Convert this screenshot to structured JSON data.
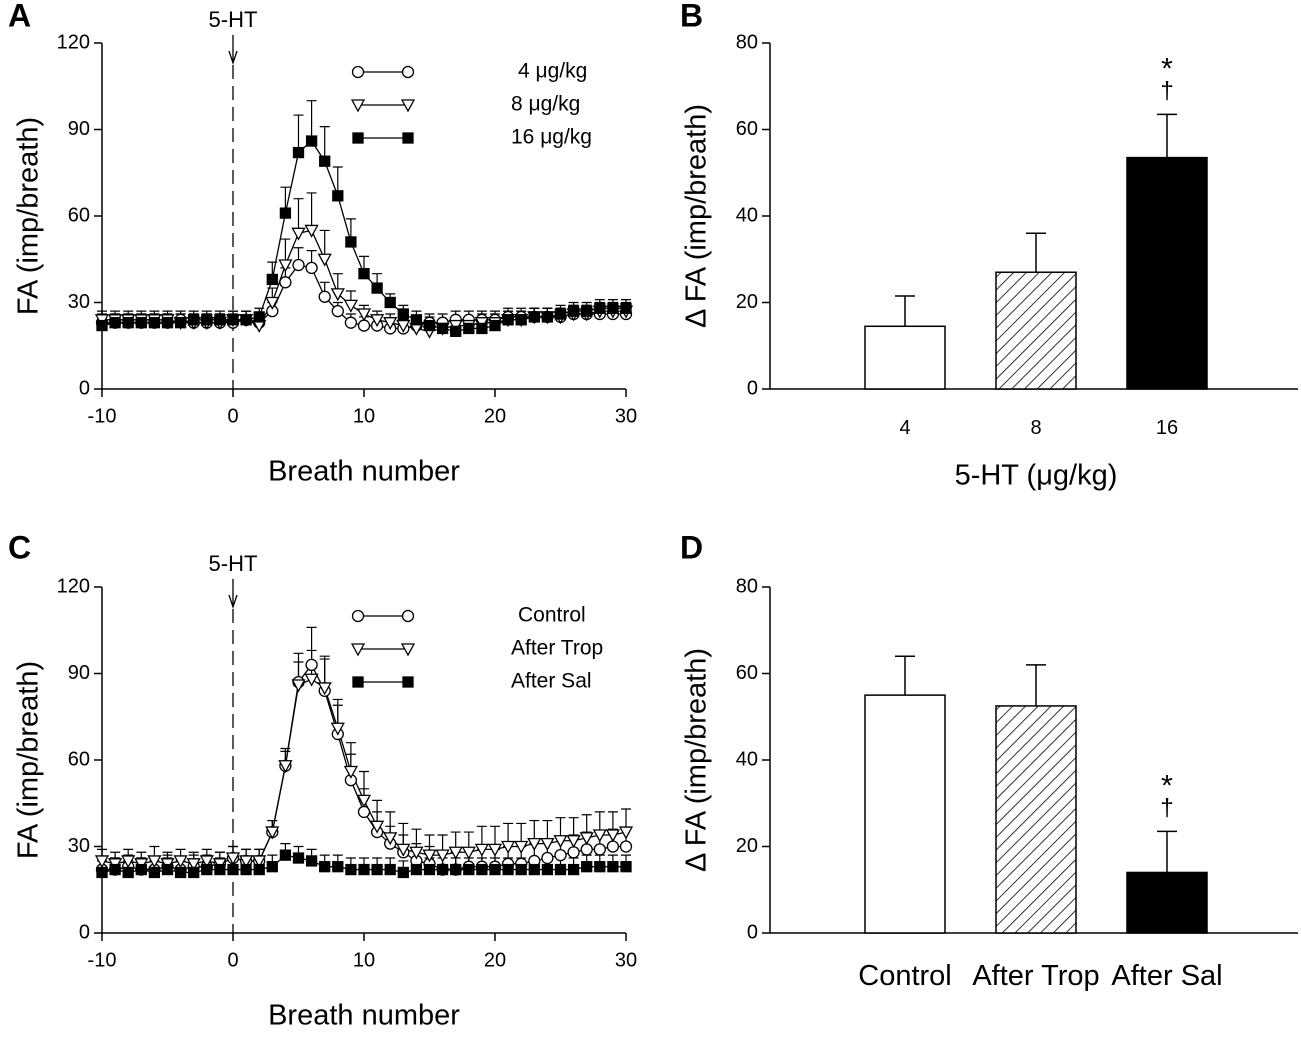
{
  "chart_data": [
    {
      "type": "line",
      "panel_label": "A",
      "xlabel": "Breath number",
      "ylabel": "FA (imp/breath)",
      "xlim": [
        -10,
        30
      ],
      "xticks": [
        -10,
        0,
        10,
        20,
        30
      ],
      "ylim": [
        0,
        120
      ],
      "yticks": [
        0,
        30,
        60,
        90,
        120
      ],
      "annotations": [
        {
          "text": "5-HT",
          "x": 0
        }
      ],
      "legend": "upper right",
      "x": [
        -10,
        -9,
        -8,
        -7,
        -6,
        -5,
        -4,
        -3,
        -2,
        -1,
        0,
        1,
        2,
        3,
        4,
        5,
        6,
        7,
        8,
        9,
        10,
        11,
        12,
        13,
        14,
        15,
        16,
        17,
        18,
        19,
        20,
        21,
        22,
        23,
        24,
        25,
        26,
        27,
        28,
        29,
        30
      ],
      "series": [
        {
          "name": "4 μg/kg",
          "marker": "circle-open",
          "color": "#000000",
          "values": [
            23,
            23,
            23,
            23,
            23,
            23,
            24,
            23,
            23,
            23,
            23,
            24,
            23,
            27,
            37,
            43,
            42,
            32,
            27,
            23,
            22,
            22,
            21,
            21,
            22,
            23,
            23,
            24,
            24,
            24,
            24,
            25,
            25,
            25,
            25,
            25,
            26,
            26,
            26,
            26,
            26
          ],
          "errors": [
            3,
            3,
            3,
            3,
            3,
            3,
            3,
            3,
            3,
            3,
            3,
            3,
            3,
            3,
            5,
            6,
            6,
            5,
            3,
            3,
            3,
            3,
            3,
            3,
            3,
            3,
            3,
            3,
            3,
            3,
            3,
            3,
            3,
            3,
            3,
            3,
            3,
            3,
            3,
            3,
            3
          ]
        },
        {
          "name": "8 μg/kg",
          "marker": "triangle-open",
          "color": "#000000",
          "values": [
            24,
            24,
            24,
            24,
            24,
            24,
            23,
            23,
            23,
            23,
            24,
            24,
            22,
            30,
            43,
            54,
            55,
            45,
            33,
            29,
            26,
            24,
            23,
            22,
            21,
            20,
            21,
            22,
            22,
            23,
            23,
            24,
            24,
            25,
            25,
            25,
            26,
            26,
            27,
            27,
            27
          ],
          "errors": [
            3,
            3,
            3,
            3,
            3,
            3,
            3,
            3,
            3,
            3,
            3,
            3,
            3,
            5,
            9,
            12,
            13,
            10,
            7,
            5,
            3,
            3,
            3,
            3,
            3,
            3,
            3,
            3,
            3,
            3,
            3,
            3,
            3,
            3,
            3,
            3,
            3,
            3,
            3,
            3,
            3
          ]
        },
        {
          "name": "16 μg/kg",
          "marker": "square-filled",
          "color": "#000000",
          "values": [
            22,
            23,
            23,
            23,
            23,
            23,
            23,
            24,
            24,
            24,
            24,
            24,
            25,
            38,
            61,
            82,
            86,
            79,
            67,
            51,
            40,
            35,
            30,
            26,
            24,
            22,
            21,
            20,
            21,
            21,
            22,
            24,
            24,
            25,
            25,
            26,
            27,
            27,
            28,
            28,
            28
          ],
          "errors": [
            3,
            3,
            3,
            3,
            3,
            3,
            3,
            3,
            3,
            3,
            3,
            3,
            3,
            6,
            9,
            13,
            14,
            12,
            10,
            8,
            6,
            5,
            3,
            3,
            3,
            3,
            3,
            3,
            3,
            3,
            3,
            3,
            3,
            3,
            3,
            3,
            3,
            3,
            3,
            3,
            3
          ]
        }
      ]
    },
    {
      "type": "bar",
      "panel_label": "B",
      "xlabel": "5-HT (μg/kg)",
      "ylabel": "Δ FA (imp/breath)",
      "ylim": [
        0,
        80
      ],
      "yticks": [
        0,
        20,
        40,
        60,
        80
      ],
      "categories": [
        "4",
        "8",
        "16"
      ],
      "values": [
        14.5,
        27,
        53.5
      ],
      "errors": [
        7,
        9,
        10
      ],
      "fills": [
        "#ffffff",
        "hatch",
        "#000000"
      ],
      "annotations": [
        {
          "text": "*",
          "category": 2
        },
        {
          "text": "†",
          "category": 2
        }
      ]
    },
    {
      "type": "line",
      "panel_label": "C",
      "xlabel": "Breath number",
      "ylabel": "FA (imp/breath)",
      "xlim": [
        -10,
        30
      ],
      "xticks": [
        -10,
        0,
        10,
        20,
        30
      ],
      "ylim": [
        0,
        120
      ],
      "yticks": [
        0,
        30,
        60,
        90,
        120
      ],
      "annotations": [
        {
          "text": "5-HT",
          "x": 0
        }
      ],
      "legend": "upper right",
      "x": [
        -10,
        -9,
        -8,
        -7,
        -6,
        -5,
        -4,
        -3,
        -2,
        -1,
        0,
        1,
        2,
        3,
        4,
        5,
        6,
        7,
        8,
        9,
        10,
        11,
        12,
        13,
        14,
        15,
        16,
        17,
        18,
        19,
        20,
        21,
        22,
        23,
        24,
        25,
        26,
        27,
        28,
        29,
        30
      ],
      "series": [
        {
          "name": "Control",
          "marker": "circle-open",
          "color": "#000000",
          "values": [
            22,
            22,
            23,
            22,
            22,
            23,
            22,
            23,
            23,
            24,
            26,
            25,
            25,
            35,
            58,
            87,
            93,
            84,
            69,
            53,
            42,
            35,
            31,
            28,
            25,
            24,
            22,
            22,
            23,
            23,
            23,
            24,
            24,
            25,
            26,
            27,
            28,
            29,
            29,
            30,
            30
          ],
          "errors": [
            4,
            4,
            4,
            4,
            4,
            4,
            4,
            4,
            4,
            4,
            4,
            4,
            4,
            4,
            6,
            10,
            13,
            12,
            10,
            9,
            8,
            7,
            6,
            6,
            6,
            6,
            6,
            6,
            6,
            6,
            6,
            6,
            6,
            6,
            6,
            6,
            6,
            6,
            6,
            6,
            6
          ]
        },
        {
          "name": "After Trop",
          "marker": "triangle-open",
          "color": "#000000",
          "values": [
            25,
            24,
            25,
            24,
            25,
            24,
            25,
            24,
            25,
            24,
            26,
            25,
            25,
            35,
            58,
            86,
            88,
            85,
            71,
            56,
            46,
            37,
            33,
            29,
            28,
            27,
            27,
            28,
            28,
            29,
            29,
            30,
            30,
            31,
            31,
            32,
            32,
            33,
            34,
            34,
            35
          ],
          "errors": [
            4,
            4,
            4,
            4,
            5,
            4,
            4,
            4,
            4,
            4,
            4,
            4,
            4,
            4,
            5,
            8,
            10,
            10,
            10,
            10,
            10,
            9,
            9,
            9,
            8,
            7,
            7,
            7,
            7,
            8,
            8,
            8,
            8,
            8,
            8,
            8,
            8,
            8,
            8,
            8,
            8
          ]
        },
        {
          "name": "After Sal",
          "marker": "square-filled",
          "color": "#000000",
          "values": [
            21,
            22,
            21,
            22,
            21,
            22,
            21,
            21,
            22,
            22,
            22,
            22,
            22,
            23,
            27,
            26,
            25,
            23,
            23,
            22,
            22,
            22,
            22,
            21,
            22,
            22,
            22,
            22,
            22,
            22,
            22,
            22,
            22,
            22,
            22,
            22,
            22,
            23,
            23,
            23,
            23
          ],
          "errors": [
            4,
            4,
            4,
            4,
            4,
            4,
            4,
            4,
            4,
            4,
            4,
            4,
            4,
            4,
            4,
            4,
            4,
            4,
            4,
            4,
            4,
            4,
            4,
            4,
            4,
            4,
            4,
            4,
            4,
            4,
            4,
            4,
            4,
            4,
            4,
            4,
            4,
            4,
            4,
            4,
            4
          ]
        }
      ]
    },
    {
      "type": "bar",
      "panel_label": "D",
      "ylabel": "Δ FA (imp/breath)",
      "ylim": [
        0,
        80
      ],
      "yticks": [
        0,
        20,
        40,
        60,
        80
      ],
      "categories": [
        "Control",
        "After Trop",
        "After Sal"
      ],
      "values": [
        55,
        52.5,
        14
      ],
      "errors": [
        9,
        9.5,
        9.5
      ],
      "fills": [
        "#ffffff",
        "hatch",
        "#000000"
      ],
      "annotations": [
        {
          "text": "*",
          "category": 2
        },
        {
          "text": "†",
          "category": 2
        }
      ]
    }
  ]
}
